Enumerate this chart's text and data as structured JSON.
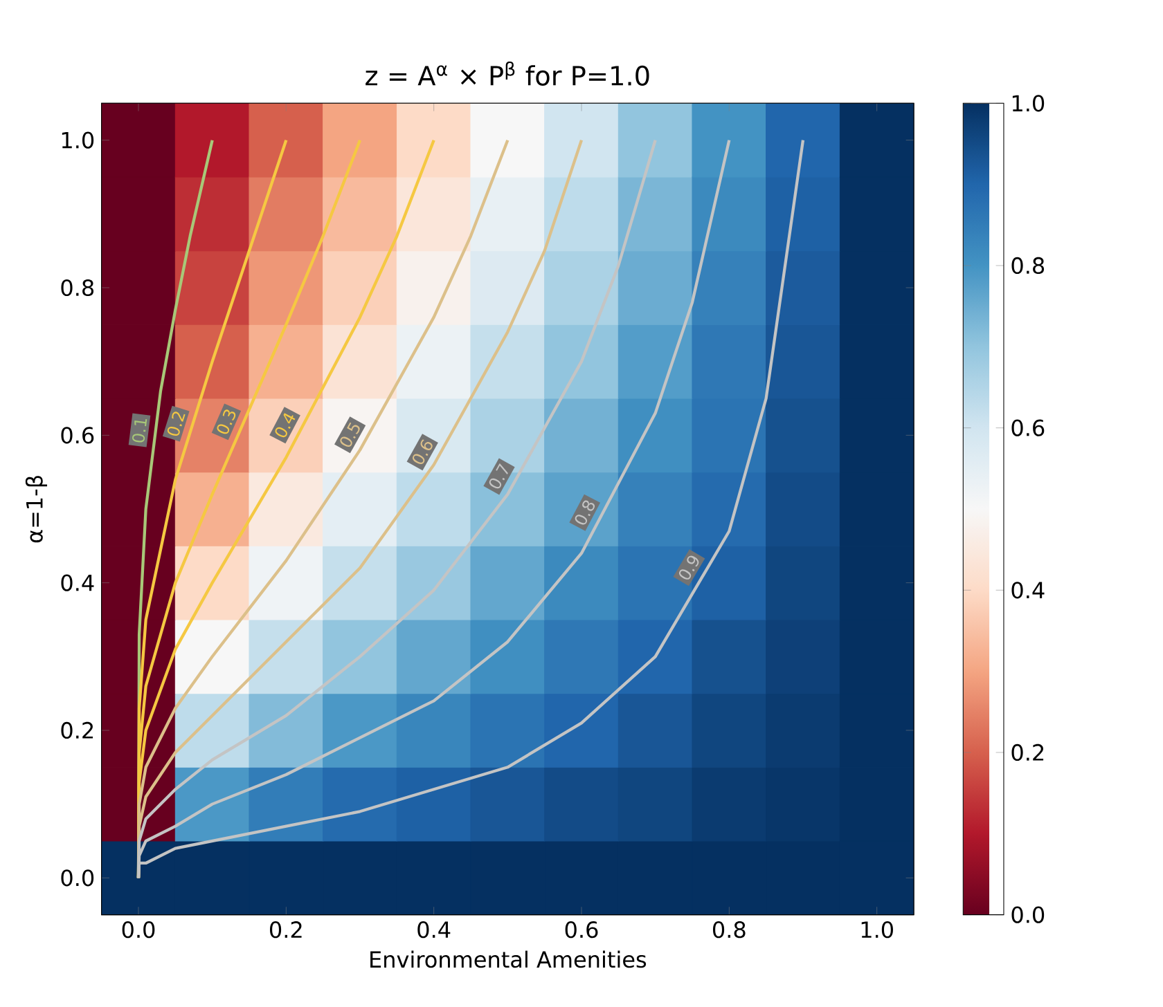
{
  "chart_data": [
    {
      "type": "heatmap",
      "categories": [
        null,
        null,
        null,
        null,
        null,
        null,
        null,
        null,
        null,
        null,
        null
      ],
      "y_categories": [
        null,
        null,
        null,
        null,
        null,
        null,
        null,
        null,
        null,
        null,
        null
      ],
      "clim": [
        0,
        1
      ],
      "cticks": [
        {
          "value": 0,
          "label": "0.0"
        },
        0.2,
        0.4,
        0.6,
        0.8,
        {
          "value": 1,
          "label": "1.0"
        }
      ],
      "cells": [
        [
          0,
          0.1,
          0.2,
          0.3,
          0.4,
          0.5,
          0.6,
          0.7,
          0.8,
          0.9,
          1
        ],
        [
          0,
          0.13,
          0.24,
          0.34,
          0.44,
          0.54,
          0.63,
          0.73,
          0.82,
          0.91,
          1
        ],
        [
          0,
          0.16,
          0.28,
          0.38,
          0.48,
          0.57,
          0.66,
          0.75,
          0.84,
          0.92,
          1
        ],
        [
          0,
          0.2,
          0.32,
          0.43,
          0.53,
          0.62,
          0.7,
          0.78,
          0.86,
          0.93,
          1
        ],
        [
          0,
          0.25,
          0.38,
          0.49,
          0.58,
          0.66,
          0.74,
          0.81,
          0.87,
          0.94,
          1
        ],
        [
          0,
          0.32,
          0.45,
          0.55,
          0.63,
          0.71,
          0.77,
          0.84,
          0.89,
          0.95,
          1
        ],
        [
          0,
          0.4,
          0.52,
          0.62,
          0.69,
          0.76,
          0.82,
          0.87,
          0.91,
          0.96,
          1
        ],
        [
          0,
          0.5,
          0.62,
          0.7,
          0.76,
          0.81,
          0.86,
          0.9,
          0.94,
          0.97,
          1
        ],
        [
          0,
          0.63,
          0.72,
          0.79,
          0.83,
          0.87,
          0.9,
          0.93,
          0.96,
          0.98,
          1
        ],
        [
          0,
          0.79,
          0.85,
          0.89,
          0.91,
          0.93,
          0.95,
          0.96,
          0.98,
          0.99,
          1
        ],
        [
          1,
          1,
          1,
          1,
          1,
          1,
          1,
          1,
          1,
          1,
          1
        ]
      ]
    },
    {
      "type": "line",
      "title": "z = A$^{α}$ × P$^{β}$ for P=1.0",
      "xlabel": "Environmental Amenities",
      "ylabel": "α=1-β",
      "xlim": [
        -0.05,
        1.05
      ],
      "ylim": [
        -0.05,
        1.05
      ],
      "xticks": [
        {
          "value": 0,
          "label": "0.0"
        },
        0.2,
        0.4,
        0.6,
        0.8,
        {
          "value": 1,
          "label": "1.0"
        }
      ],
      "yticks": [
        {
          "value": 0,
          "label": "0.0"
        },
        0.2,
        0.4,
        0.6,
        0.8,
        {
          "value": 1,
          "label": "1.0"
        }
      ],
      "series": [
        {
          "name": "0.1",
          "color": "#a8c878",
          "x": [
            0,
            0.001,
            0.01,
            0.03,
            0.05,
            0.07,
            0.1
          ],
          "values": [
            0,
            0.33,
            0.5,
            0.66,
            0.77,
            0.87,
            1.0
          ]
        },
        {
          "name": "0.2",
          "color": "#f5c842",
          "x": [
            0,
            0.001,
            0.01,
            0.05,
            0.1,
            0.15,
            0.2
          ],
          "values": [
            0,
            0.23,
            0.35,
            0.54,
            0.7,
            0.85,
            1.0
          ]
        },
        {
          "name": "0.3",
          "color": "#f5c842",
          "x": [
            0,
            0.001,
            0.01,
            0.05,
            0.1,
            0.2,
            0.25,
            0.3
          ],
          "values": [
            0,
            0.17,
            0.26,
            0.4,
            0.52,
            0.75,
            0.87,
            1.0
          ]
        },
        {
          "name": "0.4",
          "color": "#f5c842",
          "x": [
            0,
            0.001,
            0.01,
            0.05,
            0.1,
            0.2,
            0.3,
            0.35,
            0.4
          ],
          "values": [
            0,
            0.13,
            0.2,
            0.31,
            0.4,
            0.57,
            0.76,
            0.87,
            1.0
          ]
        },
        {
          "name": "0.5",
          "color": "#dcc08a",
          "x": [
            0,
            0.001,
            0.01,
            0.05,
            0.1,
            0.2,
            0.3,
            0.4,
            0.45,
            0.5
          ],
          "values": [
            0,
            0.1,
            0.15,
            0.23,
            0.3,
            0.43,
            0.58,
            0.76,
            0.87,
            1.0
          ]
        },
        {
          "name": "0.6",
          "color": "#dcc08a",
          "x": [
            0,
            0.001,
            0.01,
            0.05,
            0.1,
            0.2,
            0.3,
            0.4,
            0.5,
            0.55,
            0.6
          ],
          "values": [
            0,
            0.07,
            0.11,
            0.17,
            0.22,
            0.32,
            0.42,
            0.56,
            0.74,
            0.85,
            1.0
          ]
        },
        {
          "name": "0.7",
          "color": "#c4c4c4",
          "x": [
            0,
            0.001,
            0.01,
            0.05,
            0.1,
            0.2,
            0.3,
            0.4,
            0.5,
            0.6,
            0.65,
            0.7
          ],
          "values": [
            0,
            0.05,
            0.08,
            0.12,
            0.16,
            0.22,
            0.3,
            0.39,
            0.52,
            0.7,
            0.83,
            1.0
          ]
        },
        {
          "name": "0.8",
          "color": "#c4c4c4",
          "x": [
            0,
            0.001,
            0.01,
            0.05,
            0.1,
            0.2,
            0.3,
            0.4,
            0.5,
            0.6,
            0.7,
            0.75,
            0.8
          ],
          "values": [
            0,
            0.03,
            0.05,
            0.07,
            0.1,
            0.14,
            0.19,
            0.24,
            0.32,
            0.44,
            0.63,
            0.78,
            1.0
          ]
        },
        {
          "name": "0.9",
          "color": "#c4c4c4",
          "x": [
            0,
            0.001,
            0.01,
            0.05,
            0.1,
            0.2,
            0.3,
            0.4,
            0.5,
            0.6,
            0.7,
            0.8,
            0.85,
            0.9
          ],
          "values": [
            0,
            0.02,
            0.02,
            0.04,
            0.05,
            0.07,
            0.09,
            0.12,
            0.15,
            0.21,
            0.3,
            0.47,
            0.65,
            1.0
          ]
        }
      ]
    }
  ]
}
